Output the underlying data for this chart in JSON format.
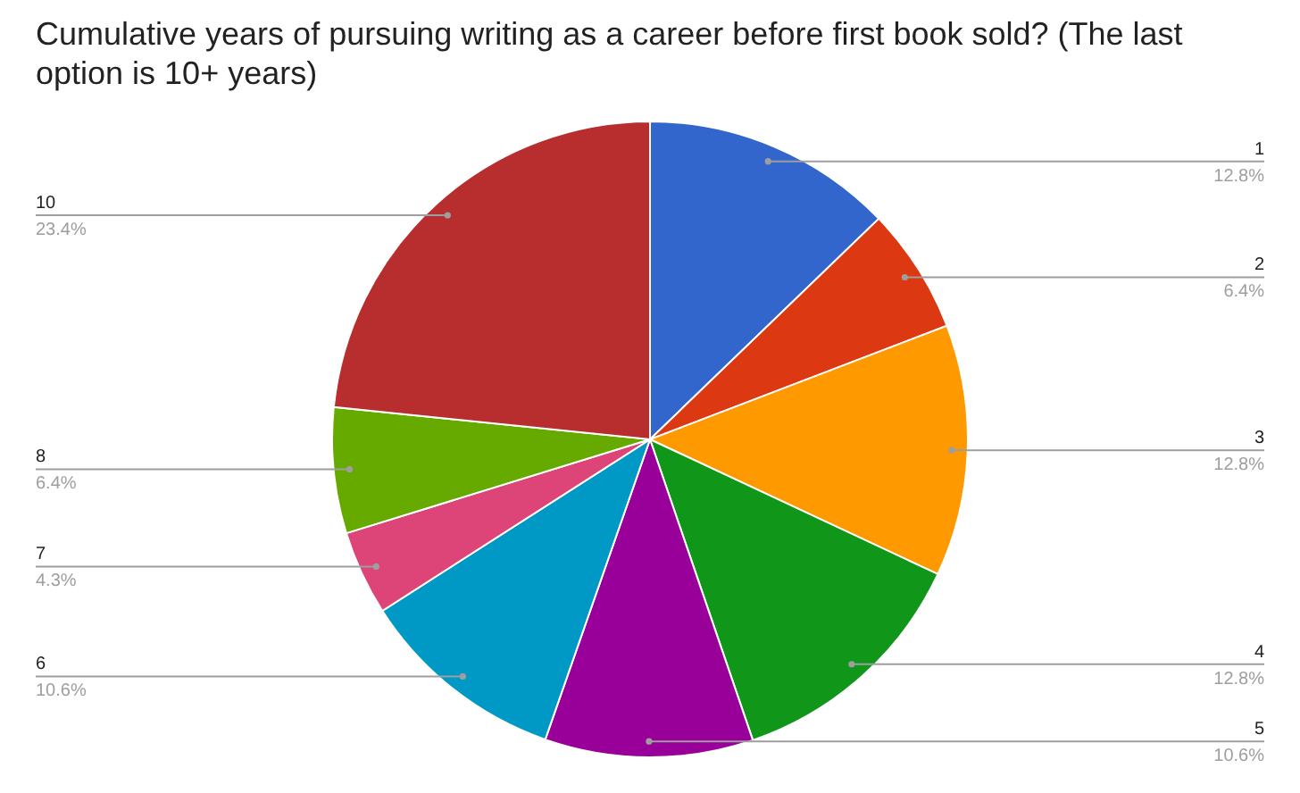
{
  "chart_data": {
    "type": "pie",
    "title": "Cumulative years of pursuing writing as a career before first book sold? (The last option is 10+ years)",
    "categories": [
      "1",
      "2",
      "3",
      "4",
      "5",
      "6",
      "7",
      "8",
      "10"
    ],
    "values": [
      12.8,
      6.4,
      12.8,
      12.8,
      10.6,
      10.6,
      4.3,
      6.4,
      23.4
    ],
    "colors": [
      "#3366cc",
      "#dc3912",
      "#ff9900",
      "#109618",
      "#990099",
      "#0099c6",
      "#dd4477",
      "#66aa00",
      "#b82e2e"
    ],
    "value_labels": [
      "12.8%",
      "6.4%",
      "12.8%",
      "12.8%",
      "10.6%",
      "10.6%",
      "4.3%",
      "6.4%",
      "23.4%"
    ]
  }
}
